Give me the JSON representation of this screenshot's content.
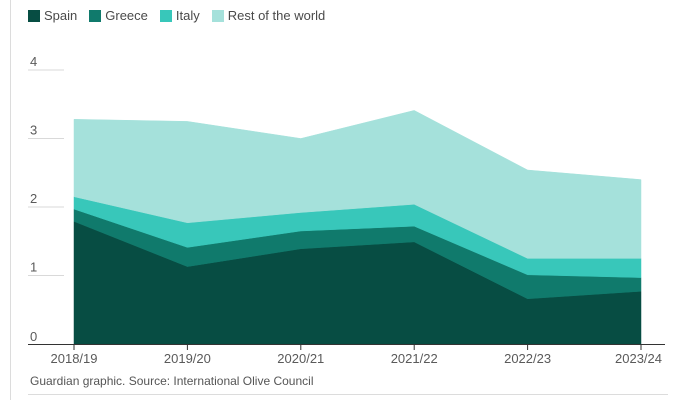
{
  "chart_data": {
    "type": "area",
    "stacked": true,
    "categories": [
      "2018/19",
      "2019/20",
      "2020/21",
      "2021/22",
      "2022/23",
      "2023/24"
    ],
    "series": [
      {
        "name": "Spain",
        "color": "#074d43",
        "values": [
          1.79,
          1.13,
          1.39,
          1.49,
          0.66,
          0.77
        ]
      },
      {
        "name": "Greece",
        "color": "#107a6c",
        "values": [
          0.18,
          0.28,
          0.26,
          0.23,
          0.35,
          0.2
        ]
      },
      {
        "name": "Italy",
        "color": "#38c7ba",
        "values": [
          0.18,
          0.36,
          0.27,
          0.32,
          0.24,
          0.28
        ]
      },
      {
        "name": "Rest of the world",
        "color": "#a5e1db",
        "values": [
          1.13,
          1.48,
          1.08,
          1.37,
          1.29,
          1.15
        ]
      }
    ],
    "ylim": [
      0,
      4
    ],
    "yticks": [
      "0",
      "1",
      "2",
      "3",
      "4"
    ],
    "title": "",
    "xlabel": "",
    "ylabel": "",
    "legend": "top-left",
    "grid": true
  },
  "source_text": "Guardian graphic. Source: International Olive Council"
}
